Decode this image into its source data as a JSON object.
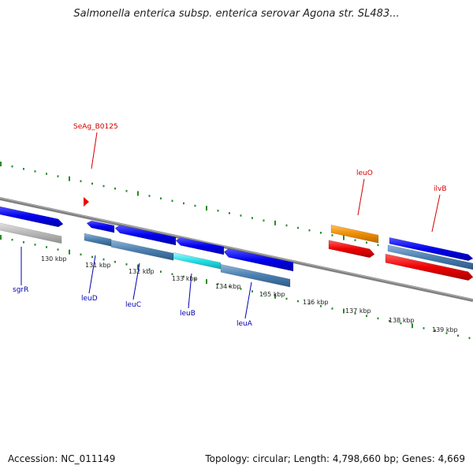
{
  "title": "Salmonella enterica subsp. enterica serovar Agona str. SL483...",
  "footer": {
    "accession": "Accession: NC_011149",
    "topology": "Topology: circular; Length: 4,798,660 bp; Genes: 4,669"
  },
  "ruler": {
    "unit": "kbp",
    "ticks": [
      {
        "label": "130 kbp"
      },
      {
        "label": "131 kbp"
      },
      {
        "label": "132 kbp"
      },
      {
        "label": "133 kbp"
      },
      {
        "label": "134 kbp"
      },
      {
        "label": "135 kbp"
      },
      {
        "label": "136 kbp"
      },
      {
        "label": "137 kbp"
      },
      {
        "label": "138 kbp"
      },
      {
        "label": "139 kbp"
      }
    ]
  },
  "genes": [
    {
      "name": "SeAg_B0125",
      "color": "#d40000"
    },
    {
      "name": "leuO",
      "color": "#d40000"
    },
    {
      "name": "ilvB",
      "color": "#d40000"
    },
    {
      "name": "sgrR",
      "color": "#0000b0"
    },
    {
      "name": "leuD",
      "color": "#0000b0"
    },
    {
      "name": "leuC",
      "color": "#0000b0"
    },
    {
      "name": "leuB",
      "color": "#0000b0"
    },
    {
      "name": "leuA",
      "color": "#0000b0"
    }
  ],
  "colors": {
    "backbone": "#808080",
    "blue_gene": "#0000ee",
    "steel_feature": "#4a7fb0",
    "cyan_feature": "#22e0e8",
    "orange_feature": "#f08c00",
    "red_feature": "#ee0000",
    "gray_feature": "#b8b8b8",
    "tick_green": "#2a8a2a"
  }
}
